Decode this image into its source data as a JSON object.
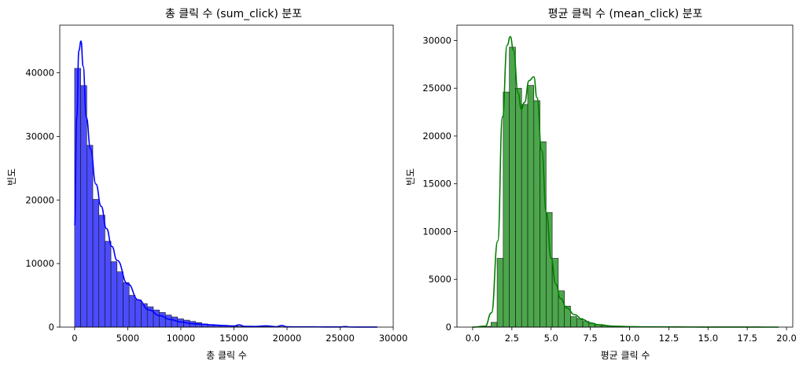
{
  "chart_data": [
    {
      "type": "bar",
      "title": "총 클릭 수 (sum_click) 분포",
      "xlabel": "총 클릭 수",
      "ylabel": "빈도",
      "xlim": [
        -1400,
        30000
      ],
      "ylim": [
        0,
        47500
      ],
      "xticks": [
        "0",
        "5000",
        "10000",
        "15000",
        "20000",
        "25000",
        "30000"
      ],
      "xtick_values": [
        0,
        5000,
        10000,
        15000,
        20000,
        25000,
        30000
      ],
      "yticks": [
        "0",
        "10000",
        "20000",
        "30000",
        "40000"
      ],
      "ytick_values": [
        0,
        10000,
        20000,
        30000,
        40000
      ],
      "bin_start": 0,
      "bin_width": 570,
      "counts": [
        40700,
        38000,
        28600,
        20100,
        17600,
        13500,
        10300,
        8700,
        7000,
        5000,
        4300,
        3700,
        3200,
        2700,
        2300,
        1900,
        1600,
        1300,
        1100,
        900,
        700,
        500,
        400,
        300,
        220,
        180,
        150,
        120,
        100,
        90,
        80,
        70,
        60,
        55,
        50,
        45,
        40,
        35,
        30,
        28,
        25,
        22,
        20,
        18,
        16,
        14,
        12,
        10,
        8,
        6
      ],
      "kde_x": [
        0,
        200,
        400,
        600,
        800,
        1100,
        1500,
        2000,
        2500,
        3000,
        3500,
        4000,
        5000,
        6000,
        7000,
        8000,
        9000,
        10000,
        11000,
        12000,
        13000,
        14000,
        15000,
        15500,
        16000,
        17000,
        18000,
        19000,
        19500,
        20000,
        21000,
        22000,
        23000,
        24000,
        25000,
        25500,
        26000,
        27000,
        28500
      ],
      "kde_y": [
        16000,
        33000,
        43500,
        45000,
        41000,
        33000,
        28000,
        22500,
        19000,
        15500,
        12700,
        10500,
        6800,
        4300,
        2700,
        1800,
        1200,
        800,
        550,
        450,
        350,
        250,
        180,
        350,
        120,
        100,
        200,
        60,
        250,
        50,
        40,
        35,
        30,
        25,
        20,
        80,
        15,
        10,
        5
      ],
      "colors": {
        "bar": "#0000ff",
        "kde": "#0000ff"
      }
    },
    {
      "type": "bar",
      "title": "평균 클릭 수 (mean_click) 분포",
      "xlabel": "평균 클릭 수",
      "ylabel": "빈도",
      "xlim": [
        -1.0,
        20.4
      ],
      "ylim": [
        0,
        31600
      ],
      "xticks": [
        "0.0",
        "2.5",
        "5.0",
        "7.5",
        "10.0",
        "12.5",
        "15.0",
        "17.5",
        "20.0"
      ],
      "xtick_values": [
        0,
        2.5,
        5,
        7.5,
        10,
        12.5,
        15,
        17.5,
        20
      ],
      "yticks": [
        "0",
        "5000",
        "10000",
        "15000",
        "20000",
        "25000",
        "30000"
      ],
      "ytick_values": [
        0,
        5000,
        10000,
        15000,
        20000,
        25000,
        30000
      ],
      "bin_start": 0,
      "bin_width": 0.39,
      "counts": [
        30,
        50,
        80,
        500,
        7200,
        24600,
        29300,
        25000,
        23300,
        25300,
        23700,
        19400,
        12000,
        7200,
        3800,
        2200,
        1100,
        900,
        600,
        400,
        250,
        150,
        100,
        80,
        60,
        50,
        40,
        30,
        25,
        20,
        15,
        12,
        10,
        8,
        6,
        5,
        4,
        3,
        3,
        2,
        2,
        2,
        1,
        1,
        1,
        1,
        1,
        1,
        1,
        1
      ],
      "kde_x": [
        0,
        0.8,
        1.2,
        1.6,
        1.9,
        2.2,
        2.4,
        2.6,
        2.9,
        3.1,
        3.3,
        3.6,
        3.9,
        4.1,
        4.4,
        4.7,
        5.0,
        5.3,
        5.6,
        6.0,
        6.5,
        7.0,
        7.5,
        8.0,
        9.0,
        10.0,
        11.0,
        12.0,
        14.0,
        16.0,
        18.0,
        19.5
      ],
      "kde_y": [
        0,
        100,
        1500,
        9000,
        22000,
        29500,
        30400,
        29000,
        24500,
        22800,
        23500,
        25800,
        26200,
        24000,
        18500,
        12000,
        7200,
        4500,
        3000,
        2000,
        1300,
        800,
        450,
        250,
        100,
        50,
        30,
        20,
        10,
        5,
        2,
        0
      ],
      "colors": {
        "bar": "#008000",
        "kde": "#008000"
      }
    }
  ]
}
